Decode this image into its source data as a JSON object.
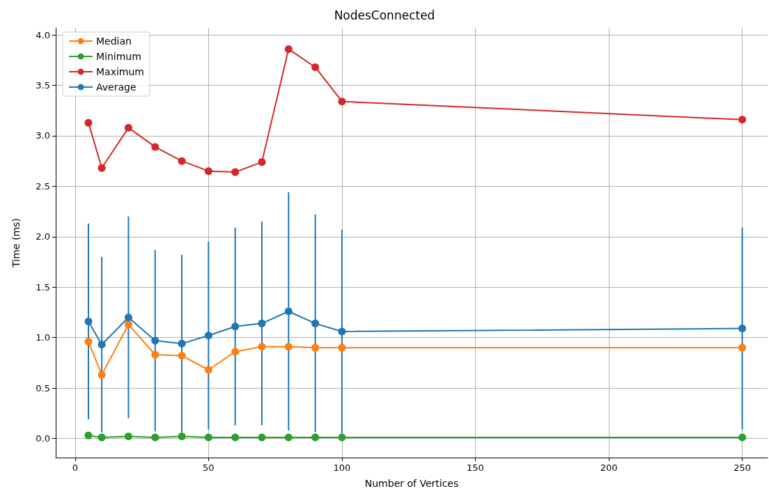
{
  "chart_data": {
    "type": "line",
    "title": "NodesConnected",
    "xlabel": "Number of Vertices",
    "ylabel": "Time (ms)",
    "x": [
      5,
      10,
      20,
      30,
      40,
      50,
      60,
      70,
      80,
      90,
      100,
      250
    ],
    "series": [
      {
        "name": "Median",
        "color": "#ff7f0e",
        "values": [
          0.96,
          0.63,
          1.13,
          0.83,
          0.82,
          0.68,
          0.86,
          0.91,
          0.91,
          0.9,
          0.9,
          0.9
        ]
      },
      {
        "name": "Minimum",
        "color": "#2ca02c",
        "values": [
          0.03,
          0.01,
          0.02,
          0.01,
          0.02,
          0.01,
          0.01,
          0.01,
          0.01,
          0.01,
          0.01,
          0.01
        ]
      },
      {
        "name": "Maximum",
        "color": "#d62728",
        "values": [
          3.13,
          2.68,
          3.08,
          2.89,
          2.75,
          2.65,
          2.64,
          2.74,
          3.86,
          3.68,
          3.34,
          3.16
        ]
      },
      {
        "name": "Average",
        "color": "#1f77b4",
        "values": [
          1.16,
          0.93,
          1.2,
          0.97,
          0.94,
          1.02,
          1.11,
          1.14,
          1.26,
          1.14,
          1.06,
          1.09
        ],
        "errors": [
          0.97,
          0.87,
          1.0,
          0.9,
          0.88,
          0.93,
          0.98,
          1.01,
          1.18,
          1.08,
          1.01,
          1.0
        ]
      }
    ],
    "xlim": [
      -7.25,
      259.5
    ],
    "xticks": [
      0,
      50,
      100,
      150,
      200,
      250
    ],
    "ylim": [
      -0.19,
      4.07
    ],
    "yticks": [
      {
        "value": 0,
        "label": "0.0"
      },
      {
        "value": 0.5,
        "label": "0.5"
      },
      {
        "value": 1,
        "label": "1.0"
      },
      {
        "value": 1.5,
        "label": "1.5"
      },
      {
        "value": 2,
        "label": "2.0"
      },
      {
        "value": 2.5,
        "label": "2.5"
      },
      {
        "value": 3,
        "label": "3.0"
      },
      {
        "value": 3.5,
        "label": "3.5"
      },
      {
        "value": 4,
        "label": "4.0"
      }
    ],
    "grid": true,
    "legend": "top left",
    "marker": "circle",
    "line_style": "solid"
  }
}
